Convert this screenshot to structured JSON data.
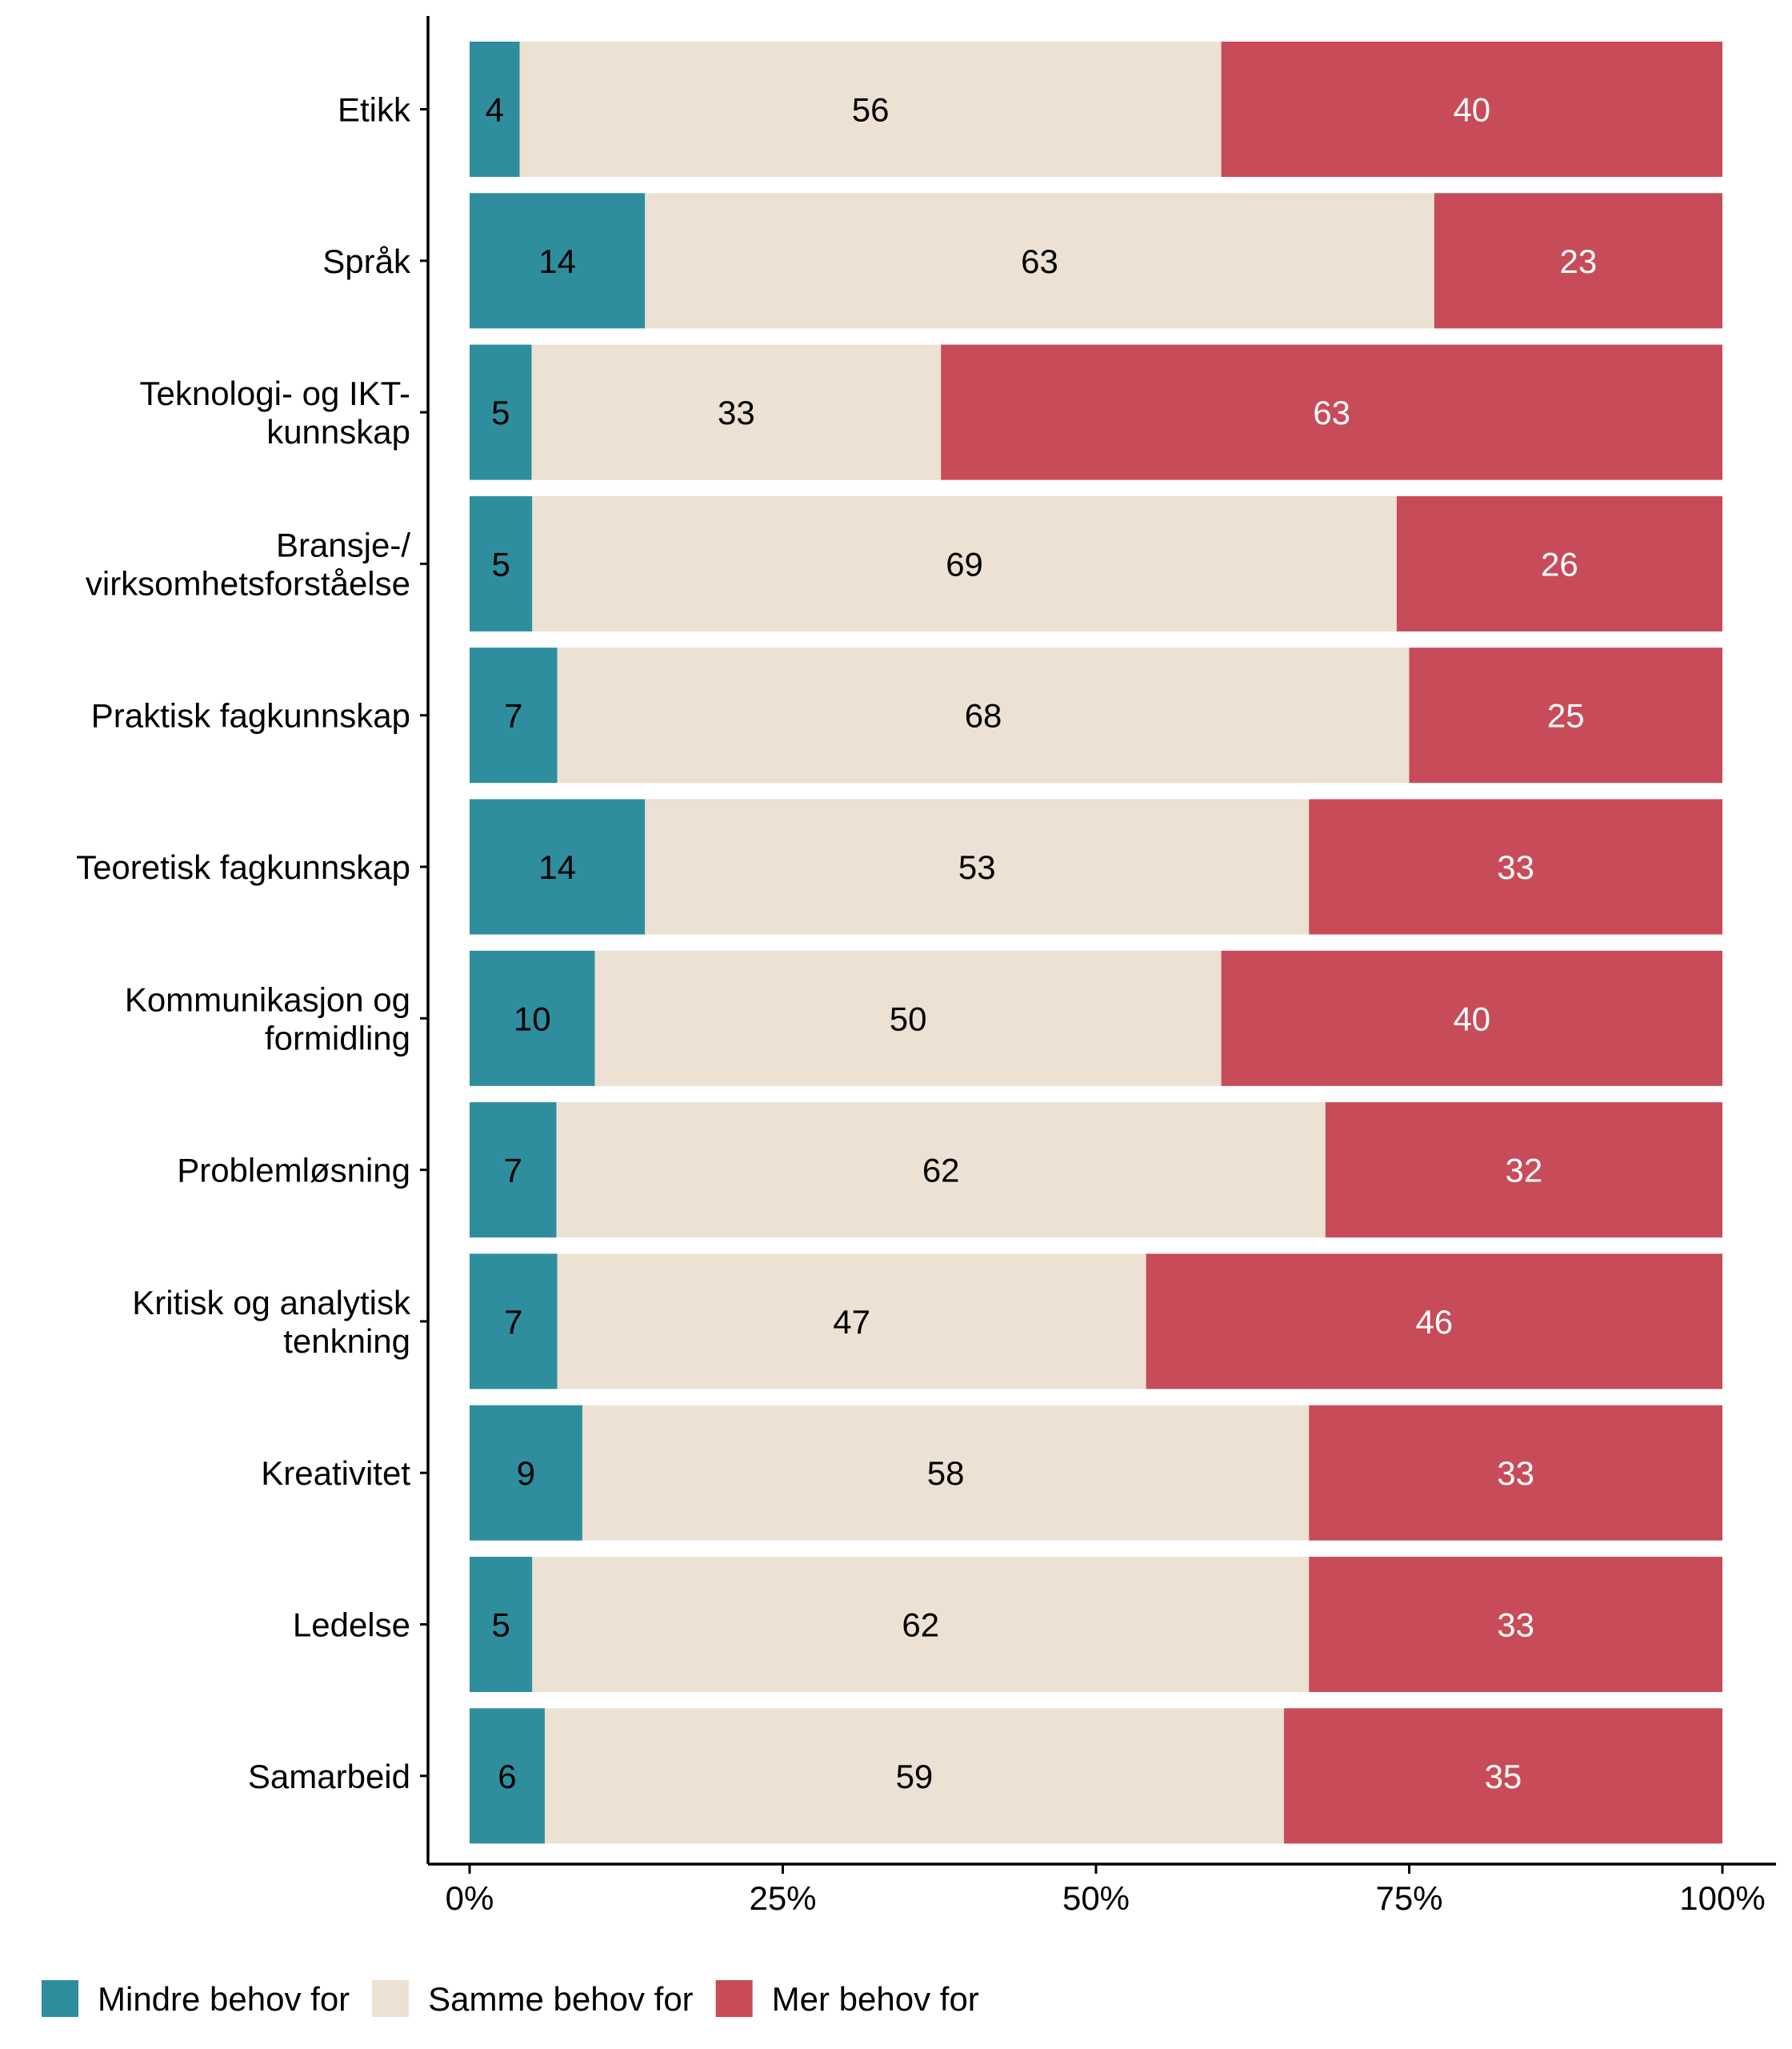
{
  "chart_data": {
    "type": "bar",
    "orientation": "horizontal",
    "stacked": "percent",
    "title": "",
    "xlabel": "",
    "ylabel": "",
    "xlim": [
      0,
      100
    ],
    "x_ticks": [
      "0%",
      "25%",
      "50%",
      "75%",
      "100%"
    ],
    "categories": [
      "Etikk",
      "Språk",
      "Teknologi- og IKT-\nkunnskap",
      "Bransje-/\nvirksomhetsforståelse",
      "Praktisk fagkunnskap",
      "Teoretisk fagkunnskap",
      "Kommunikasjon og\nformidling",
      "Problemløsning",
      "Kritisk og analytisk\ntenkning",
      "Kreativitet",
      "Ledelse",
      "Samarbeid"
    ],
    "series": [
      {
        "name": "Mindre behov for",
        "color": "#2E8E9E",
        "label_color": "#000000",
        "values": [
          4,
          14,
          5,
          5,
          7,
          14,
          10,
          7,
          7,
          9,
          5,
          6
        ]
      },
      {
        "name": "Samme behov for",
        "color": "#ECE1D3",
        "label_color": "#000000",
        "values": [
          56,
          63,
          33,
          69,
          68,
          53,
          50,
          62,
          47,
          58,
          62,
          59
        ]
      },
      {
        "name": "Mer behov for",
        "color": "#C84B59",
        "label_color": "#FFFFFF",
        "values": [
          40,
          23,
          63,
          26,
          25,
          33,
          40,
          32,
          46,
          33,
          33,
          35
        ]
      }
    ],
    "legend_position": "bottom-left",
    "grid": false
  }
}
